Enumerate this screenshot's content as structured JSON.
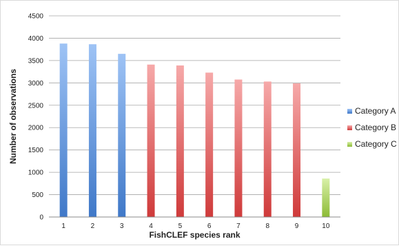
{
  "chart_data": {
    "type": "bar",
    "title": "",
    "xlabel": "FishCLEF species rank",
    "ylabel": "Number of observations",
    "ylim": [
      0,
      4500
    ],
    "yticks": [
      0,
      500,
      1000,
      1500,
      2000,
      2500,
      3000,
      3500,
      4000,
      4500
    ],
    "categories": [
      "1",
      "2",
      "3",
      "4",
      "5",
      "6",
      "7",
      "8",
      "9",
      "10"
    ],
    "grid": true,
    "legend_position": "right",
    "series": [
      {
        "name": "Category A",
        "color_top": "#9ec3f5",
        "color_bottom": "#3f78c8",
        "values": [
          3880,
          3865,
          3650,
          null,
          null,
          null,
          null,
          null,
          null,
          null
        ]
      },
      {
        "name": "Category B",
        "color_top": "#f6a9a9",
        "color_bottom": "#cf3a3a",
        "values": [
          null,
          null,
          null,
          3410,
          3390,
          3230,
          3075,
          3030,
          2990,
          null
        ]
      },
      {
        "name": "Category C",
        "color_top": "#d8f0a8",
        "color_bottom": "#8cbb35",
        "values": [
          null,
          null,
          null,
          null,
          null,
          null,
          null,
          null,
          null,
          860
        ]
      }
    ]
  }
}
